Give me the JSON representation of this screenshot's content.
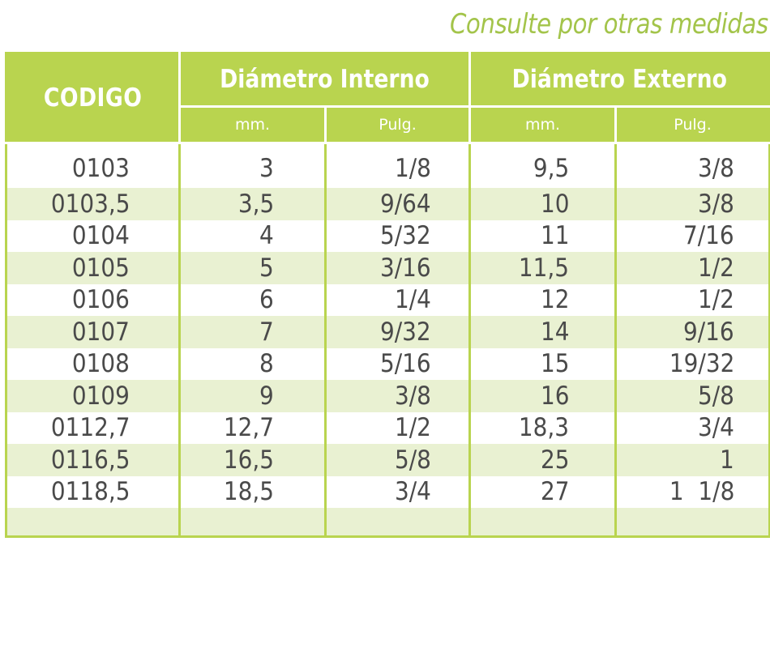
{
  "note": "Consulte por otras medidas",
  "header": {
    "codigo": "CODIGO",
    "interno": "Diámetro Interno",
    "externo": "Diámetro Externo",
    "units": [
      "mm.",
      "Pulg.",
      "mm.",
      "Pulg."
    ]
  },
  "rows": [
    {
      "codigo": "0103",
      "int_mm": "3",
      "int_pulg": "1/8",
      "ext_mm": "9,5",
      "ext_pulg": "3/8"
    },
    {
      "codigo": "0103,5",
      "int_mm": "3,5",
      "int_pulg": "9/64",
      "ext_mm": "10",
      "ext_pulg": "3/8"
    },
    {
      "codigo": "0104",
      "int_mm": "4",
      "int_pulg": "5/32",
      "ext_mm": "11",
      "ext_pulg": "7/16"
    },
    {
      "codigo": "0105",
      "int_mm": "5",
      "int_pulg": "3/16",
      "ext_mm": "11,5",
      "ext_pulg": "1/2"
    },
    {
      "codigo": "0106",
      "int_mm": "6",
      "int_pulg": "1/4",
      "ext_mm": "12",
      "ext_pulg": "1/2"
    },
    {
      "codigo": "0107",
      "int_mm": "7",
      "int_pulg": "9/32",
      "ext_mm": "14",
      "ext_pulg": "9/16"
    },
    {
      "codigo": "0108",
      "int_mm": "8",
      "int_pulg": "5/16",
      "ext_mm": "15",
      "ext_pulg": "19/32"
    },
    {
      "codigo": "0109",
      "int_mm": "9",
      "int_pulg": "3/8",
      "ext_mm": "16",
      "ext_pulg": "5/8"
    },
    {
      "codigo": "0112,7",
      "int_mm": "12,7",
      "int_pulg": "1/2",
      "ext_mm": "18,3",
      "ext_pulg": "3/4"
    },
    {
      "codigo": "0116,5",
      "int_mm": "16,5",
      "int_pulg": "5/8",
      "ext_mm": "25",
      "ext_pulg": "1"
    },
    {
      "codigo": "0118,5",
      "int_mm": "18,5",
      "int_pulg": "3/4",
      "ext_mm": "27",
      "ext_pulg": "1  1/8"
    }
  ],
  "colors": {
    "header_green": "#b9d44f",
    "stripe": "#e9f1d2",
    "note_green": "#a3c44a",
    "text": "#4a4a4a"
  }
}
